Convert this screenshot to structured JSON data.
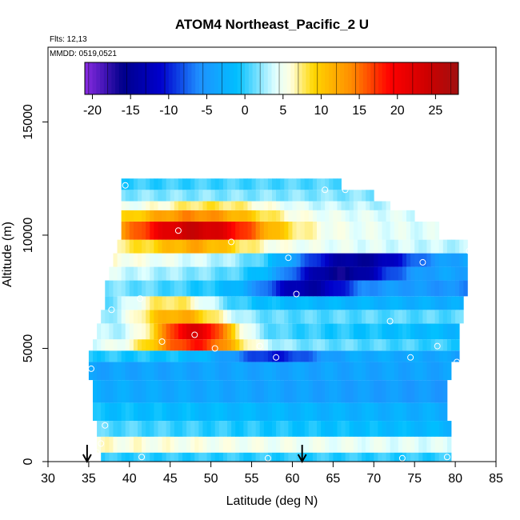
{
  "chart_data": {
    "type": "heatmap",
    "title": "ATOM4 Northeast_Pacific_2 U",
    "annotations": [
      "Flts: 12,13",
      "MMDD: 0519,0521"
    ],
    "xlabel": "Latitude (deg N)",
    "ylabel": "Altitude (m)",
    "xlim": [
      30,
      85
    ],
    "ylim": [
      0,
      18300
    ],
    "x_ticks": [
      30,
      35,
      40,
      45,
      50,
      55,
      60,
      65,
      70,
      75,
      80,
      85
    ],
    "y_ticks": [
      0,
      5000,
      10000,
      15000
    ],
    "colorbar": {
      "min": -21,
      "max": 28,
      "ticks": [
        -20,
        -15,
        -10,
        -5,
        0,
        5,
        10,
        15,
        20,
        25
      ],
      "stops": [
        {
          "v": -21,
          "color": "#8a2be2"
        },
        {
          "v": -16,
          "color": "#00008b"
        },
        {
          "v": -11,
          "color": "#0000cd"
        },
        {
          "v": -6,
          "color": "#1e90ff"
        },
        {
          "v": -1,
          "color": "#00bfff"
        },
        {
          "v": 4,
          "color": "#e0ffff"
        },
        {
          "v": 6,
          "color": "#ffffe0"
        },
        {
          "v": 9,
          "color": "#ffd700"
        },
        {
          "v": 14,
          "color": "#ff8c00"
        },
        {
          "v": 19,
          "color": "#ff0000"
        },
        {
          "v": 24,
          "color": "#cc0000"
        },
        {
          "v": 28,
          "color": "#a01010"
        }
      ]
    },
    "bands": [
      {
        "z0": 0,
        "z1": 400,
        "x0": 36.5,
        "x1": 79.5,
        "v0": 0,
        "v1": 0,
        "hot": null
      },
      {
        "z0": 400,
        "z1": 1100,
        "x0": 36.0,
        "x1": 79.5,
        "v0": 6,
        "v1": 4,
        "hot": null
      },
      {
        "z0": 1100,
        "z1": 1800,
        "x0": 36.0,
        "x1": 79.5,
        "v0": 1,
        "v1": -2,
        "hot": null
      },
      {
        "z0": 1800,
        "z1": 2600,
        "x0": 35.5,
        "x1": 79.0,
        "v0": -1,
        "v1": -3,
        "hot": null
      },
      {
        "z0": 2600,
        "z1": 3600,
        "x0": 35.5,
        "x1": 79.0,
        "v0": -3,
        "v1": -5,
        "hot": null
      },
      {
        "z0": 3600,
        "z1": 4400,
        "x0": 35.0,
        "x1": 79.5,
        "v0": -4,
        "v1": -4,
        "hot": null
      },
      {
        "z0": 4400,
        "z1": 4900,
        "x0": 35.0,
        "x1": 80.5,
        "v0": 0,
        "v1": -4,
        "hot": {
          "lat": 58,
          "w": 6,
          "v": -10
        }
      },
      {
        "z0": 4900,
        "z1": 5400,
        "x0": 35.5,
        "x1": 80.5,
        "v0": 4,
        "v1": 0,
        "hot": {
          "lat": 48,
          "w": 6,
          "v": 18
        }
      },
      {
        "z0": 5400,
        "z1": 6100,
        "x0": 36.0,
        "x1": 80.5,
        "v0": 3,
        "v1": -2,
        "hot": {
          "lat": 48,
          "w": 5,
          "v": 22
        }
      },
      {
        "z0": 6100,
        "z1": 6700,
        "x0": 36.5,
        "x1": 81.0,
        "v0": 1,
        "v1": 1,
        "hot": {
          "lat": 46,
          "w": 6,
          "v": 12
        }
      },
      {
        "z0": 6700,
        "z1": 7300,
        "x0": 37.0,
        "x1": 81.0,
        "v0": 0,
        "v1": -3,
        "hot": {
          "lat": 45,
          "w": 6,
          "v": 8
        }
      },
      {
        "z0": 7300,
        "z1": 8000,
        "x0": 37.0,
        "x1": 81.5,
        "v0": 2,
        "v1": -6,
        "hot": {
          "lat": 62,
          "w": 6,
          "v": -14
        }
      },
      {
        "z0": 8000,
        "z1": 8600,
        "x0": 37.5,
        "x1": 81.5,
        "v0": 4,
        "v1": -4,
        "hot": {
          "lat": 66,
          "w": 7,
          "v": -16
        }
      },
      {
        "z0": 8600,
        "z1": 9200,
        "x0": 38.0,
        "x1": 81.5,
        "v0": 6,
        "v1": -3,
        "hot": {
          "lat": 68,
          "w": 8,
          "v": -15
        }
      },
      {
        "z0": 9200,
        "z1": 9800,
        "x0": 38.5,
        "x1": 81.5,
        "v0": 7,
        "v1": 3,
        "hot": {
          "lat": 48,
          "w": 6,
          "v": 12
        }
      },
      {
        "z0": 9800,
        "z1": 10600,
        "x0": 39.0,
        "x1": 78.0,
        "v0": 6,
        "v1": 4,
        "hot": {
          "lat": 48,
          "w": 9,
          "v": 24
        }
      },
      {
        "z0": 10600,
        "z1": 11100,
        "x0": 39.0,
        "x1": 75.0,
        "v0": 5,
        "v1": 4,
        "hot": {
          "lat": 48,
          "w": 9,
          "v": 14
        }
      },
      {
        "z0": 11100,
        "z1": 11500,
        "x0": 39.0,
        "x1": 72.0,
        "v0": 4,
        "v1": 3,
        "hot": {
          "lat": 50,
          "w": 8,
          "v": 8
        }
      },
      {
        "z0": 11500,
        "z1": 12000,
        "x0": 39.0,
        "x1": 70.0,
        "v0": 2,
        "v1": 2,
        "hot": null
      },
      {
        "z0": 12000,
        "z1": 12500,
        "x0": 39.0,
        "x1": 66.0,
        "v0": 0,
        "v1": 1,
        "hot": null
      }
    ],
    "points": [
      {
        "lat": 41.5,
        "alt": 200
      },
      {
        "lat": 57.0,
        "alt": 150
      },
      {
        "lat": 73.5,
        "alt": 150
      },
      {
        "lat": 79.0,
        "alt": 200
      },
      {
        "lat": 36.0,
        "alt": 400
      },
      {
        "lat": 36.5,
        "alt": 800
      },
      {
        "lat": 37.0,
        "alt": 1600
      },
      {
        "lat": 35.3,
        "alt": 4100
      },
      {
        "lat": 80.2,
        "alt": 4400
      },
      {
        "lat": 58.0,
        "alt": 4600
      },
      {
        "lat": 74.5,
        "alt": 4600
      },
      {
        "lat": 50.5,
        "alt": 5000
      },
      {
        "lat": 56.0,
        "alt": 5100
      },
      {
        "lat": 77.8,
        "alt": 5100
      },
      {
        "lat": 44.0,
        "alt": 5300
      },
      {
        "lat": 48.0,
        "alt": 5600
      },
      {
        "lat": 72.0,
        "alt": 6200
      },
      {
        "lat": 37.8,
        "alt": 6700
      },
      {
        "lat": 41.3,
        "alt": 7200
      },
      {
        "lat": 60.5,
        "alt": 7400
      },
      {
        "lat": 76.0,
        "alt": 8800
      },
      {
        "lat": 59.5,
        "alt": 9000
      },
      {
        "lat": 81.7,
        "alt": 9300
      },
      {
        "lat": 52.5,
        "alt": 9700
      },
      {
        "lat": 46.0,
        "alt": 10200
      },
      {
        "lat": 39.5,
        "alt": 12200
      },
      {
        "lat": 64.0,
        "alt": 12000
      },
      {
        "lat": 66.5,
        "alt": 12000
      }
    ],
    "arrows": [
      {
        "lat": 34.8
      },
      {
        "lat": 61.2
      }
    ]
  }
}
